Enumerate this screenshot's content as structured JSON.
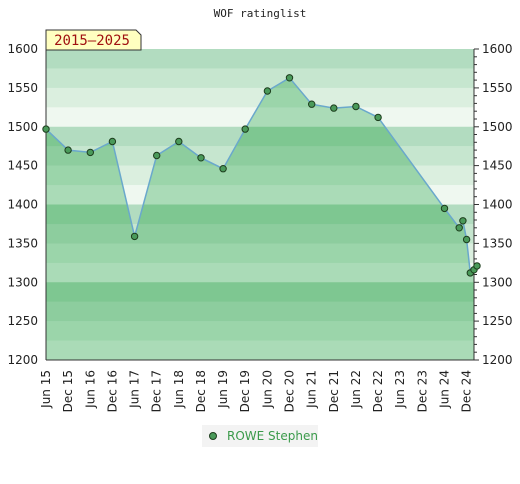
{
  "chart_data": {
    "type": "area",
    "title": "WOF ratinglist",
    "badge": "2015–2025",
    "ylim": [
      1200,
      1600
    ],
    "yticks": [
      1200,
      1250,
      1300,
      1350,
      1400,
      1450,
      1500,
      1550,
      1600
    ],
    "xlim": [
      "2015-06",
      "2025-02"
    ],
    "xticks": [
      "Jun 15",
      "Dec 15",
      "Jun 16",
      "Dec 16",
      "Jun 17",
      "Dec 17",
      "Jun 18",
      "Dec 18",
      "Jun 19",
      "Dec 19",
      "Jun 20",
      "Dec 20",
      "Jun 21",
      "Dec 21",
      "Jun 22",
      "Dec 22",
      "Jun 23",
      "Dec 23",
      "Jun 24",
      "Dec 24"
    ],
    "series": [
      {
        "name": "ROWE Stephen",
        "points": [
          [
            "2015-06",
            1497
          ],
          [
            "2015-12",
            1470
          ],
          [
            "2016-06",
            1467
          ],
          [
            "2016-12",
            1481
          ],
          [
            "2017-06",
            1359
          ],
          [
            "2017-12",
            1463
          ],
          [
            "2018-06",
            1481
          ],
          [
            "2018-12",
            1460
          ],
          [
            "2019-06",
            1446
          ],
          [
            "2019-12",
            1497
          ],
          [
            "2020-06",
            1546
          ],
          [
            "2020-12",
            1563
          ],
          [
            "2021-06",
            1529
          ],
          [
            "2021-12",
            1524
          ],
          [
            "2022-06",
            1526
          ],
          [
            "2022-12",
            1512
          ],
          [
            "2024-06",
            1395
          ],
          [
            "2024-10",
            1370
          ],
          [
            "2024-11",
            1379
          ],
          [
            "2024-12",
            1355
          ],
          [
            "2025-01",
            1312
          ],
          [
            "2025-02",
            1316
          ],
          [
            "2025-02",
            1321
          ]
        ]
      }
    ],
    "legend": "bottom",
    "grid": false,
    "colors": {
      "line": "#6aa8cc",
      "fill": "#8ccf9e",
      "marker": "#4a9a5a",
      "legend_text": "#3a9a4a",
      "badge_fill": "#ffffc0",
      "bands_light": [
        "#b2dcc0",
        "#c6e6cf",
        "#dbefdf",
        "#eff8f0"
      ],
      "bands_dark": [
        "#78c48c",
        "#86ca98",
        "#94d1a4",
        "#a2d7b0"
      ]
    }
  }
}
